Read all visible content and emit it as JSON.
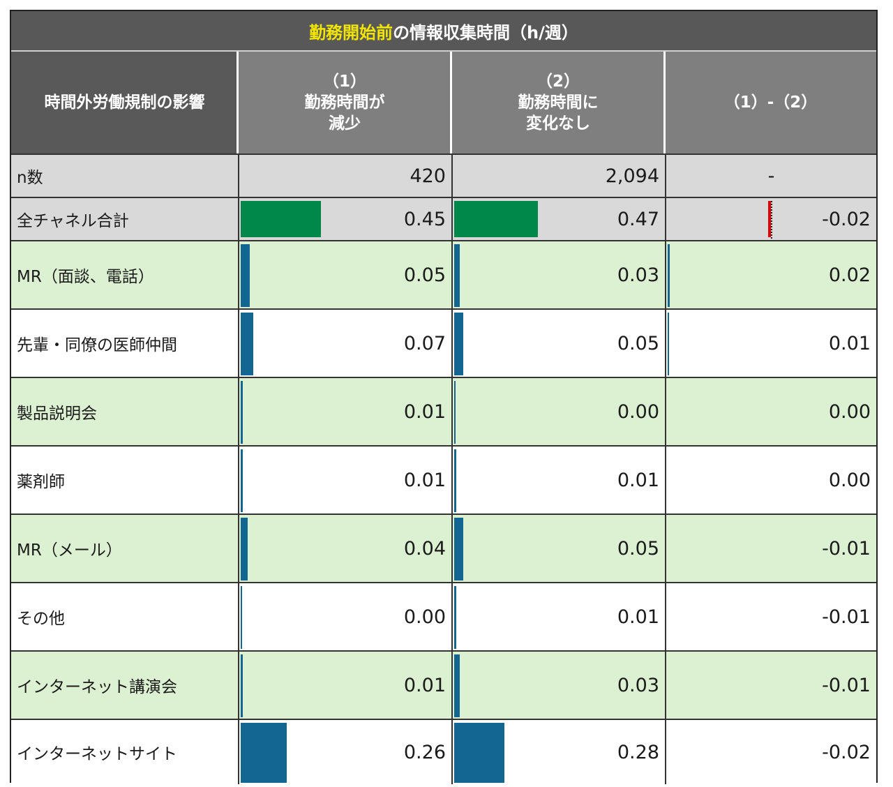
{
  "title": {
    "highlight": "勤務開始前",
    "rest": "の情報収集時間（h/週）"
  },
  "headers": {
    "label": "時間外労働規制の影響",
    "col1": "（1）\n勤務時間が\n減少",
    "col2": "（2）\n勤務時間に\n変化なし",
    "col3": "（1）-（2）"
  },
  "colors": {
    "header_dark": "#595959",
    "header_mid": "#7f7f7f",
    "row_gray": "#d9d9d9",
    "row_green": "#dcf1d2",
    "bar_total": "#00884a",
    "bar_channel": "#136592",
    "bar_negative": "#e00000"
  },
  "chart_data": {
    "type": "table",
    "title": "勤務開始前の情報収集時間（h/週）",
    "columns": [
      "時間外労働規制の影響",
      "（1）勤務時間が減少",
      "（2）勤務時間に変化なし",
      "（1）-（2）"
    ],
    "n_row": {
      "label": "n数",
      "col1": "420",
      "col2": "2,094",
      "col3": "-"
    },
    "rows": [
      {
        "label": "全チャネル合計",
        "col1": 0.45,
        "col2": 0.47,
        "diff": -0.02,
        "col1_text": "0.45",
        "col2_text": "0.47",
        "diff_text": "-0.02",
        "total": true
      },
      {
        "label": "MR（面談、電話）",
        "col1": 0.05,
        "col2": 0.03,
        "diff": 0.02,
        "col1_text": "0.05",
        "col2_text": "0.03",
        "diff_text": "0.02"
      },
      {
        "label": "先輩・同僚の医師仲間",
        "col1": 0.07,
        "col2": 0.05,
        "diff": 0.01,
        "col1_text": "0.07",
        "col2_text": "0.05",
        "diff_text": "0.01"
      },
      {
        "label": "製品説明会",
        "col1": 0.01,
        "col2": 0.0,
        "diff": 0.0,
        "col1_text": "0.01",
        "col2_text": "0.00",
        "diff_text": "0.00"
      },
      {
        "label": "薬剤師",
        "col1": 0.01,
        "col2": 0.01,
        "diff": 0.0,
        "col1_text": "0.01",
        "col2_text": "0.01",
        "diff_text": "0.00"
      },
      {
        "label": "MR（メール）",
        "col1": 0.04,
        "col2": 0.05,
        "diff": -0.01,
        "col1_text": "0.04",
        "col2_text": "0.05",
        "diff_text": "-0.01"
      },
      {
        "label": "その他",
        "col1": 0.0,
        "col2": 0.01,
        "diff": -0.01,
        "col1_text": "0.00",
        "col2_text": "0.01",
        "diff_text": "-0.01"
      },
      {
        "label": "インターネット講演会",
        "col1": 0.01,
        "col2": 0.03,
        "diff": -0.01,
        "col1_text": "0.01",
        "col2_text": "0.03",
        "diff_text": "-0.01"
      },
      {
        "label": "インターネットサイト",
        "col1": 0.26,
        "col2": 0.28,
        "diff": -0.02,
        "col1_text": "0.26",
        "col2_text": "0.28",
        "diff_text": "-0.02"
      }
    ]
  }
}
